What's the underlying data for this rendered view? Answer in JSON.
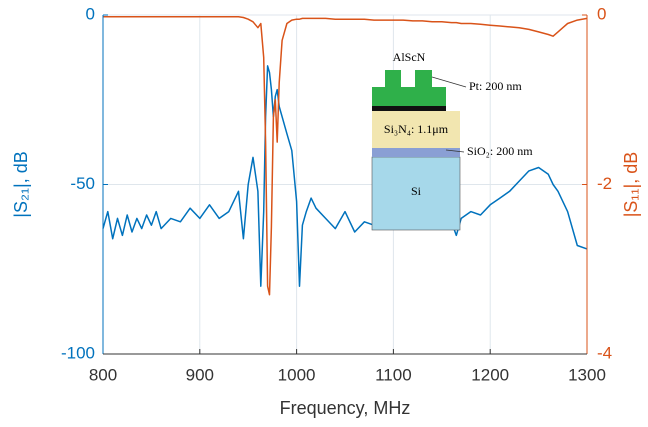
{
  "chart_data": {
    "type": "line",
    "xlabel": "Frequency, MHz",
    "ylabel": "|S₂₁|, dB",
    "y2label": "|S₁₁|, dB",
    "x": [
      800,
      805,
      810,
      815,
      820,
      825,
      830,
      835,
      840,
      845,
      850,
      855,
      860,
      870,
      880,
      890,
      900,
      910,
      920,
      930,
      940,
      945,
      950,
      955,
      960,
      963,
      966,
      968,
      970,
      972,
      974,
      976,
      978,
      980,
      982,
      985,
      990,
      995,
      1000,
      1003,
      1006,
      1010,
      1015,
      1020,
      1030,
      1040,
      1050,
      1060,
      1070,
      1080,
      1090,
      1100,
      1110,
      1120,
      1130,
      1140,
      1150,
      1160,
      1165,
      1170,
      1180,
      1190,
      1200,
      1210,
      1220,
      1230,
      1240,
      1250,
      1260,
      1265,
      1270,
      1275,
      1280,
      1290,
      1300
    ],
    "series": [
      {
        "name": "|S21|",
        "color": "#0072bd",
        "axis": "y",
        "values": [
          -63,
          -58,
          -66,
          -60,
          -65,
          -59,
          -64,
          -60,
          -63,
          -59,
          -62,
          -58,
          -63,
          -60,
          -61,
          -57,
          -60,
          -56,
          -60,
          -58,
          -52,
          -66,
          -50,
          -42,
          -52,
          -80,
          -58,
          -30,
          -15,
          -17,
          -22,
          -30,
          -24,
          -22,
          -27,
          -30,
          -35,
          -40,
          -55,
          -80,
          -62,
          -58,
          -54,
          -57,
          -60,
          -63,
          -58,
          -64,
          -61,
          -62,
          -60,
          -57,
          -59,
          -58,
          -55,
          -57,
          -60,
          -61,
          -65,
          -60,
          -58,
          -59,
          -56,
          -54,
          -52,
          -49,
          -46,
          -45,
          -47,
          -50,
          -52,
          -55,
          -58,
          -68,
          -69
        ]
      },
      {
        "name": "|S11|",
        "color": "#d95319",
        "axis": "y2",
        "values": [
          -0.02,
          -0.02,
          -0.02,
          -0.02,
          -0.02,
          -0.02,
          -0.02,
          -0.02,
          -0.02,
          -0.02,
          -0.02,
          -0.02,
          -0.02,
          -0.02,
          -0.02,
          -0.02,
          -0.02,
          -0.02,
          -0.02,
          -0.02,
          -0.02,
          -0.03,
          -0.05,
          -0.08,
          -0.15,
          -0.1,
          -0.5,
          -1.5,
          -3.2,
          -3.3,
          -2.5,
          -1.2,
          -1.0,
          -1.5,
          -0.8,
          -0.3,
          -0.1,
          -0.06,
          -0.05,
          -0.05,
          -0.04,
          -0.04,
          -0.04,
          -0.04,
          -0.04,
          -0.05,
          -0.05,
          -0.05,
          -0.05,
          -0.06,
          -0.06,
          -0.06,
          -0.06,
          -0.07,
          -0.07,
          -0.08,
          -0.08,
          -0.09,
          -0.09,
          -0.1,
          -0.1,
          -0.11,
          -0.12,
          -0.13,
          -0.14,
          -0.15,
          -0.17,
          -0.2,
          -0.23,
          -0.25,
          -0.2,
          -0.15,
          -0.1,
          -0.06,
          -0.04
        ]
      }
    ],
    "xlim": [
      800,
      1300
    ],
    "xticks": [
      800,
      900,
      1000,
      1100,
      1200,
      1300
    ],
    "ylim": [
      -100,
      0
    ],
    "yticks": [
      -100,
      -50,
      0
    ],
    "y2lim": [
      -4,
      0
    ],
    "y2ticks": [
      -4,
      -2,
      0
    ],
    "grid": true,
    "annotations": [
      "AlScN",
      "Pt: 200 nm",
      "Si₃N₄: 1.1μm",
      "SiO₂: 200 nm",
      "Si"
    ]
  }
}
